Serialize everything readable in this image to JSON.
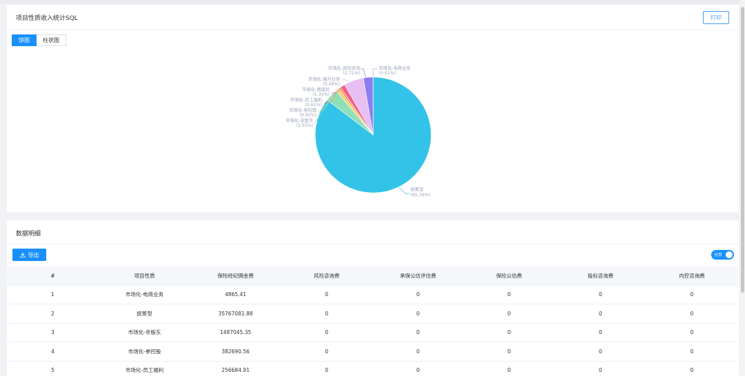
{
  "card1": {
    "title": "项目性质收入统计SQL",
    "print_label": "打印"
  },
  "tabs": [
    {
      "label": "饼图"
    },
    {
      "label": "柱状图"
    }
  ],
  "chart_data": {
    "type": "pie",
    "slices": [
      {
        "name": "统筹型",
        "percent": 85.36,
        "value": 35767081.88,
        "color": "#33c3e8"
      },
      {
        "name": "市场化-非股东",
        "percent": 3.55,
        "value": 1487045.35,
        "color": "#8fdfb8"
      },
      {
        "name": "市场化-参控股",
        "percent": 0.92,
        "value": 382690.56,
        "color": "#f5d16a"
      },
      {
        "name": "市场化-员工福利",
        "percent": 0.61,
        "value": 256684.91,
        "color": "#f6896b"
      },
      {
        "name": "市场化-再保险",
        "percent": 1.35,
        "color": "#f1618a"
      },
      {
        "name": "市场化-境外业务",
        "percent": 5.49,
        "color": "#e7bff2"
      },
      {
        "name": "市场化-风险咨询",
        "percent": 2.71,
        "color": "#8c7df3"
      },
      {
        "name": "市场化-电商业务",
        "percent": 0.01,
        "value": 4865.41,
        "color": "#a7a6f0"
      }
    ]
  },
  "labels": [
    {
      "line1": "统筹型",
      "line2": "(85.36%)"
    },
    {
      "line1": "市场化-非股东",
      "line2": "(3.55%)"
    },
    {
      "line1": "市场化-参控股",
      "line2": "(0.92%)"
    },
    {
      "line1": "市场化-员工福利",
      "line2": "(0.61%)"
    },
    {
      "line1": "市场化-再保险",
      "line2": "(1.35%)"
    },
    {
      "line1": "市场化-境外业务",
      "line2": "(5.49%)"
    },
    {
      "line1": "市场化-风险咨询",
      "line2": "(2.71%)"
    },
    {
      "line1": "市场化-电商业务",
      "line2": "(0.01%)"
    }
  ],
  "card2": {
    "title": "数据明细",
    "export_label": "导出",
    "toggle_label": "分页"
  },
  "table": {
    "headers": [
      "#",
      "项目性质",
      "保险经纪佣金费",
      "风险咨询费",
      "承保公估评估费",
      "保险公估费",
      "投标咨询费",
      "内控咨询费"
    ],
    "rows": [
      [
        "1",
        "市场化-电商业务",
        "4865.41",
        "0",
        "0",
        "0",
        "0",
        "0"
      ],
      [
        "2",
        "统筹型",
        "35767081.88",
        "0",
        "0",
        "0",
        "0",
        "0"
      ],
      [
        "3",
        "市场化-非股东",
        "1487045.35",
        "0",
        "0",
        "0",
        "0",
        "0"
      ],
      [
        "4",
        "市场化-参控股",
        "382690.56",
        "0",
        "0",
        "0",
        "0",
        "0"
      ],
      [
        "5",
        "市场化-员工福利",
        "256684.91",
        "0",
        "0",
        "0",
        "0",
        "0"
      ]
    ]
  }
}
